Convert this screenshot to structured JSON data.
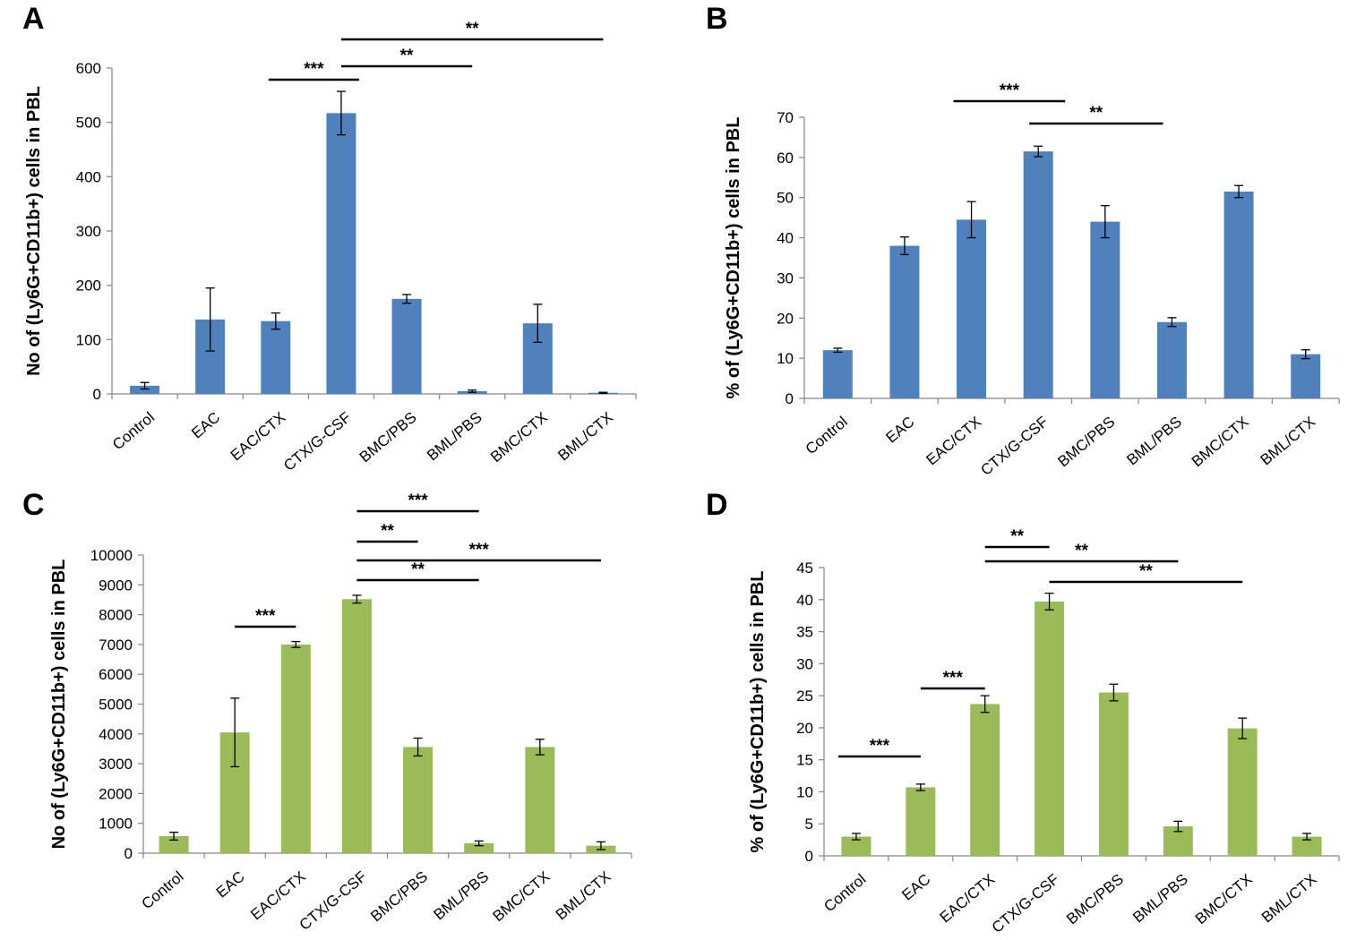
{
  "chart_data": [
    {
      "panel": "A",
      "type": "bar",
      "color": "#4f81bd",
      "categories": [
        "Control",
        "EAC",
        "EAC/CTX",
        "CTX/G-CSF",
        "BMC/PBS",
        "BML/PBS",
        "BMC/CTX",
        "BML/CTX"
      ],
      "values": [
        15,
        137,
        134,
        517,
        175,
        5,
        130,
        2
      ],
      "errors": [
        6,
        58,
        15,
        40,
        8,
        2,
        35,
        1
      ],
      "ylabel": "No of (Ly6G+CD11b+) cells in PBL",
      "ylim": [
        0,
        600
      ],
      "yticks": [
        0,
        100,
        200,
        300,
        400,
        500,
        600
      ],
      "significance": [
        {
          "from": 2,
          "to": 3,
          "label": "***"
        },
        {
          "from": 3,
          "to": 5,
          "label": "**"
        },
        {
          "from": 3,
          "to": 7,
          "label": "**"
        }
      ]
    },
    {
      "panel": "B",
      "type": "bar",
      "color": "#4f81bd",
      "categories": [
        "Control",
        "EAC",
        "EAC/CTX",
        "CTX/G-CSF",
        "BMC/PBS",
        "BML/PBS",
        "BMC/CTX",
        "BML/CTX"
      ],
      "values": [
        12,
        38,
        44.5,
        61.5,
        44,
        19,
        51.5,
        11
      ],
      "errors": [
        0.5,
        2.2,
        4.5,
        1.3,
        4,
        1.1,
        1.5,
        1.1
      ],
      "ylabel": "% of (Ly6G+CD11b+) cells in PBL",
      "ylim": [
        0,
        70
      ],
      "yticks": [
        0,
        10,
        20,
        30,
        40,
        50,
        60,
        70
      ],
      "significance": [
        {
          "from": 2,
          "to": 3,
          "label": "***"
        },
        {
          "from": 3,
          "to": 5,
          "label": "**"
        }
      ]
    },
    {
      "panel": "C",
      "type": "bar",
      "color": "#9bbb59",
      "categories": [
        "Control",
        "EAC",
        "EAC/CTX",
        "CTX/G-CSF",
        "BMC/PBS",
        "BML/PBS",
        "BMC/CTX",
        "BML/CTX"
      ],
      "values": [
        570,
        4050,
        7000,
        8520,
        3560,
        330,
        3560,
        250
      ],
      "errors": [
        130,
        1150,
        100,
        130,
        300,
        80,
        260,
        130
      ],
      "ylabel": "No of (Ly6G+CD11b+) cells in PBL",
      "ylim": [
        0,
        10000
      ],
      "yticks": [
        0,
        1000,
        2000,
        3000,
        4000,
        5000,
        6000,
        7000,
        8000,
        9000,
        10000
      ],
      "significance": [
        {
          "from": 1,
          "to": 2,
          "label": "***"
        },
        {
          "from": 3,
          "to": 5,
          "label": "***"
        },
        {
          "from": 3,
          "to": 4,
          "label": "**"
        },
        {
          "from": 3,
          "to": 7,
          "label": "***"
        },
        {
          "from": 3,
          "to": 5,
          "label": "**"
        }
      ]
    },
    {
      "panel": "D",
      "type": "bar",
      "color": "#9bbb59",
      "categories": [
        "Control",
        "EAC",
        "EAC/CTX",
        "CTX/G-CSF",
        "BMC/PBS",
        "BML/PBS",
        "BMC/CTX",
        "BML/CTX"
      ],
      "values": [
        3,
        10.7,
        23.7,
        39.7,
        25.5,
        4.6,
        19.9,
        3
      ],
      "errors": [
        0.5,
        0.5,
        1.3,
        1.3,
        1.3,
        0.8,
        1.6,
        0.5
      ],
      "ylabel": "% of (Ly6G+CD11b+) cells in PBL",
      "ylim": [
        0,
        45
      ],
      "yticks": [
        0,
        5,
        10,
        15,
        20,
        25,
        30,
        35,
        40,
        45
      ],
      "significance": [
        {
          "from": 0,
          "to": 1,
          "label": "***"
        },
        {
          "from": 1,
          "to": 2,
          "label": "***"
        },
        {
          "from": 2,
          "to": 3,
          "label": "**"
        },
        {
          "from": 2,
          "to": 5,
          "label": "**"
        },
        {
          "from": 3,
          "to": 6,
          "label": "**"
        }
      ]
    }
  ]
}
